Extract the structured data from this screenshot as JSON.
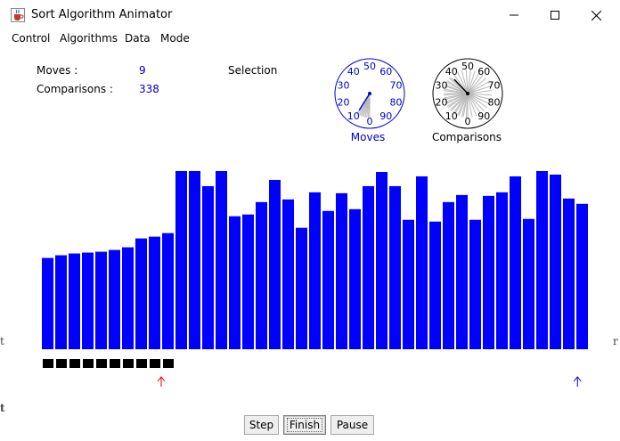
{
  "window": {
    "title": "Sort Algorithm Animator",
    "icon": "java-cup-icon"
  },
  "menu": {
    "items": [
      "Control",
      "Algorithms",
      "Data",
      "Mode"
    ]
  },
  "stats": {
    "moves_label": "Moves :",
    "moves_value": "9",
    "comparisons_label": "Comparisons :",
    "comparisons_value": "338",
    "algorithm": "Selection"
  },
  "dials": [
    {
      "name": "moves-dial",
      "label": "Moves",
      "color": "#0000cc",
      "ticks": [
        "0",
        "10",
        "20",
        "30",
        "40",
        "50",
        "60",
        "70",
        "80",
        "90"
      ],
      "needle_value": 9,
      "trail_values": [
        0,
        1,
        2,
        3,
        4,
        5,
        6,
        7,
        8,
        9
      ]
    },
    {
      "name": "comparisons-dial",
      "label": "Comparisons",
      "color": "#000000",
      "ticks": [
        "0",
        "10",
        "20",
        "30",
        "40",
        "50",
        "60",
        "70",
        "80",
        "90"
      ],
      "needle_value": 38,
      "trail_values": [
        1,
        4,
        7,
        10,
        13,
        16,
        19,
        22,
        25,
        28,
        31,
        34,
        37,
        40,
        43,
        46,
        49,
        52,
        55,
        58,
        61,
        64,
        67,
        70,
        73,
        76,
        79,
        82,
        85,
        88,
        91,
        94,
        97,
        0,
        3,
        6,
        9,
        12,
        15,
        18,
        21,
        24,
        27,
        30,
        33,
        36
      ]
    }
  ],
  "chart_data": {
    "type": "bar",
    "bar_color": "#0000ff",
    "values": [
      103,
      106,
      108,
      109,
      110,
      112,
      115,
      125,
      127,
      131,
      201,
      201,
      184,
      201,
      150,
      152,
      166,
      191,
      169,
      137,
      177,
      156,
      176,
      158,
      184,
      200,
      184,
      146,
      195,
      144,
      166,
      174,
      146,
      173,
      177,
      195,
      147,
      201,
      197,
      170,
      164
    ],
    "ylim": [
      0,
      210
    ],
    "sorted_count": 10,
    "current_index": 8,
    "scan_index": 40,
    "current_pointer_color": "#d00000",
    "scan_pointer_color": "#0000cc"
  },
  "buttons": {
    "step": "Step",
    "finish": "Finish",
    "pause": "Pause"
  },
  "edge_glyphs": [
    "t",
    "r",
    "t"
  ]
}
